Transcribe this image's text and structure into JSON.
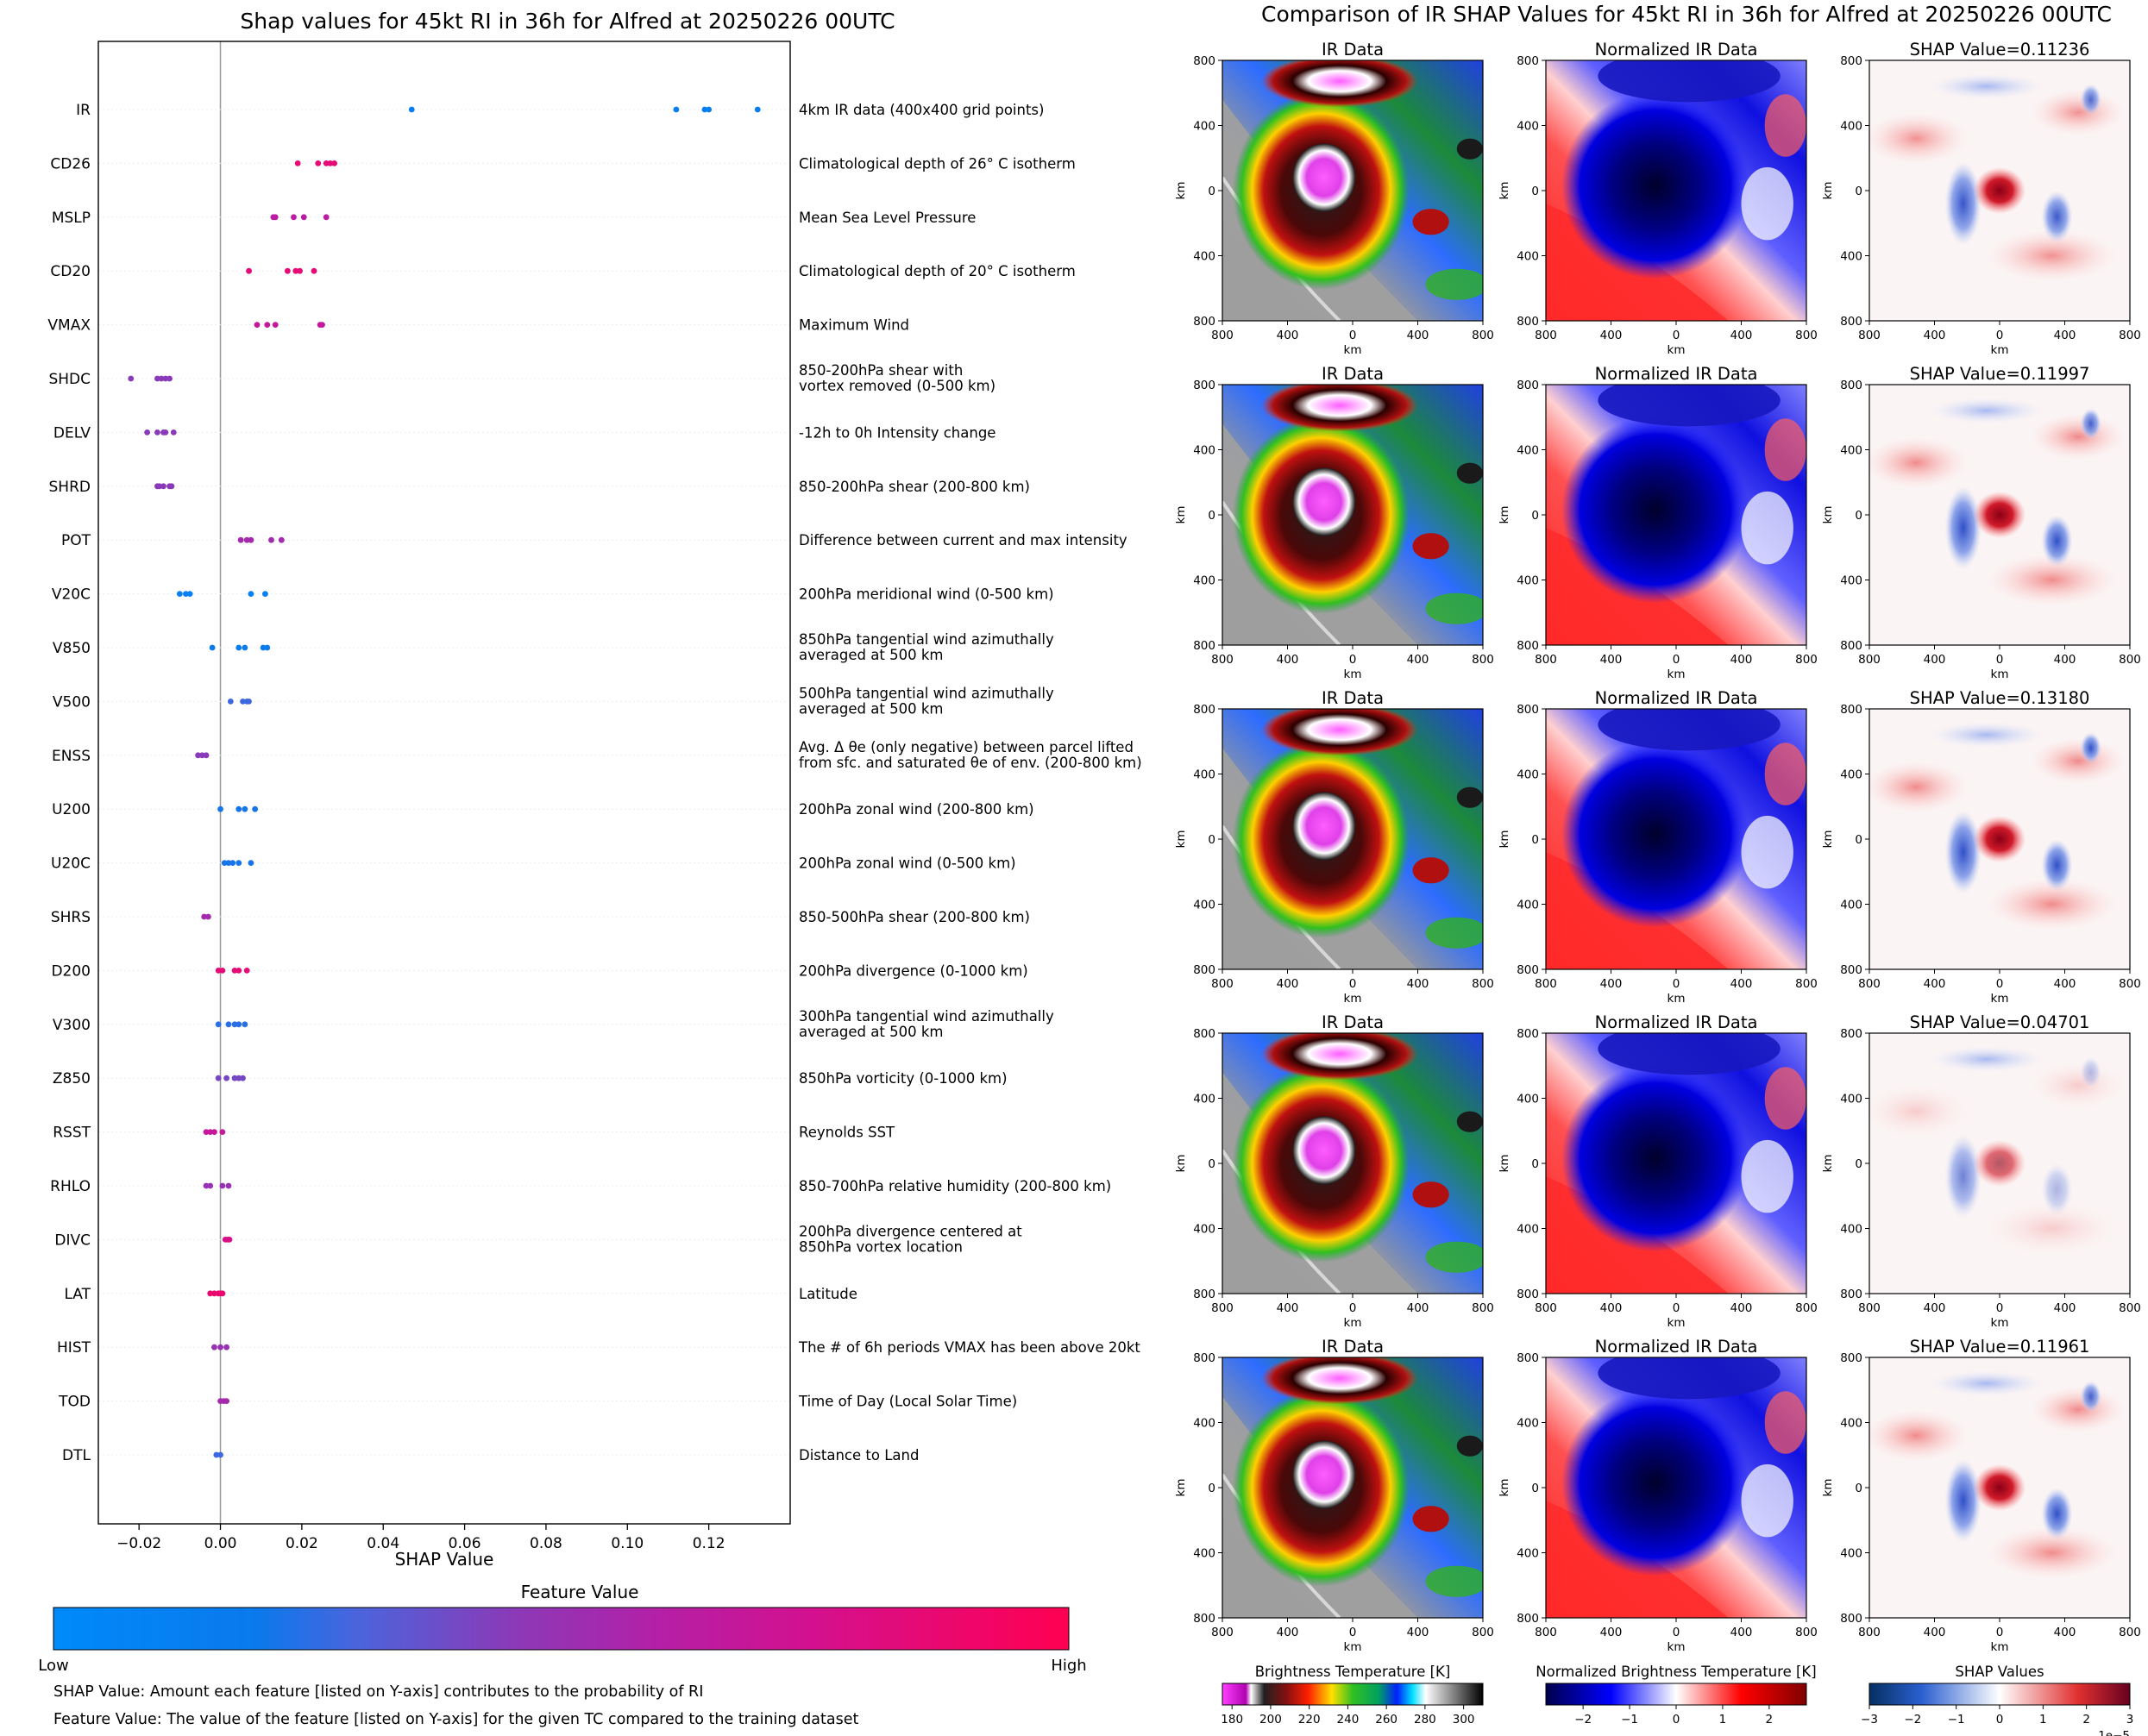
{
  "left_panel": {
    "title": "Shap values for 45kt RI in 36h for Alfred at 20250226 00UTC",
    "colorbar_title": "Feature Value",
    "colorbar_low": "Low",
    "colorbar_high": "High",
    "colorbar_colors": [
      "#008afa",
      "#0a79ec",
      "#4b64dc",
      "#8a3ab8",
      "#b51fa6",
      "#d4108e",
      "#ff0052"
    ],
    "notes": [
      "SHAP Value: Amount each feature [listed on Y-axis] contributes to the probability of RI",
      "Feature Value: The value of the feature [listed on Y-axis] for the given TC compared to the training dataset"
    ]
  },
  "right_panel": {
    "title": "Comparison of IR SHAP Values for 45kt RI in 36h for Alfred at 20250226 00UTC",
    "rows": [
      {
        "ir_title": "IR Data",
        "norm_title": "Normalized IR Data",
        "shap_title": "SHAP Value=0.11236"
      },
      {
        "ir_title": "IR Data",
        "norm_title": "Normalized IR Data",
        "shap_title": "SHAP Value=0.11997"
      },
      {
        "ir_title": "IR Data",
        "norm_title": "Normalized IR Data",
        "shap_title": "SHAP Value=0.13180"
      },
      {
        "ir_title": "IR Data",
        "norm_title": "Normalized IR Data",
        "shap_title": "SHAP Value=0.04701"
      },
      {
        "ir_title": "IR Data",
        "norm_title": "Normalized IR Data",
        "shap_title": "SHAP Value=0.11961"
      }
    ],
    "axis_unit": "km",
    "x_ticks": [
      "800",
      "400",
      "0",
      "400",
      "800"
    ],
    "y_ticks": [
      "800",
      "400",
      "0",
      "400",
      "800"
    ],
    "colorbars": [
      {
        "title": "Brightness Temperature [K]",
        "ticks": [
          "180",
          "200",
          "220",
          "240",
          "260",
          "280",
          "300"
        ],
        "range": [
          175,
          310
        ]
      },
      {
        "title": "Normalized Brightness Temperature [K]",
        "ticks": [
          "−2",
          "−1",
          "0",
          "1",
          "2"
        ],
        "range": [
          -2.8,
          2.8
        ]
      },
      {
        "title": "SHAP Values",
        "ticks": [
          "−3",
          "−2",
          "−1",
          "0",
          "1",
          "2",
          "3"
        ],
        "range": [
          -3,
          3
        ],
        "offset_text": "1e−5"
      }
    ]
  },
  "chart_data": {
    "type": "scatter",
    "title": "Shap values for 45kt RI in 36h for Alfred at 20250226 00UTC",
    "xlabel": "SHAP Value",
    "xlim": [
      -0.03,
      0.14
    ],
    "x_ticks": [
      "−0.02",
      "0.00",
      "0.02",
      "0.04",
      "0.06",
      "0.08",
      "0.10",
      "0.12"
    ],
    "x_tick_values": [
      -0.02,
      0,
      0.02,
      0.04,
      0.06,
      0.08,
      0.1,
      0.12
    ],
    "features": [
      {
        "name": "IR",
        "description": [
          "4km IR data (400x400 grid points)"
        ],
        "points": [
          [
            0.047,
            0.12
          ],
          [
            0.112,
            0.12
          ],
          [
            0.119,
            0.12
          ],
          [
            0.12,
            0.12
          ],
          [
            0.132,
            0.12
          ]
        ]
      },
      {
        "name": "CD26",
        "description": [
          "Climatological depth of 26° C isotherm"
        ],
        "points": [
          [
            0.019,
            0.9
          ],
          [
            0.024,
            0.9
          ],
          [
            0.026,
            0.9
          ],
          [
            0.027,
            0.9
          ],
          [
            0.028,
            0.9
          ]
        ]
      },
      {
        "name": "MSLP",
        "description": [
          "Mean Sea Level Pressure"
        ],
        "points": [
          [
            0.013,
            0.7
          ],
          [
            0.0135,
            0.7
          ],
          [
            0.018,
            0.7
          ],
          [
            0.0205,
            0.7
          ],
          [
            0.026,
            0.7
          ]
        ]
      },
      {
        "name": "CD20",
        "description": [
          "Climatological depth of 20° C isotherm"
        ],
        "points": [
          [
            0.007,
            0.9
          ],
          [
            0.0165,
            0.9
          ],
          [
            0.0185,
            0.9
          ],
          [
            0.0195,
            0.9
          ],
          [
            0.023,
            0.9
          ]
        ]
      },
      {
        "name": "VMAX",
        "description": [
          "Maximum Wind"
        ],
        "points": [
          [
            0.009,
            0.75
          ],
          [
            0.0115,
            0.75
          ],
          [
            0.0135,
            0.75
          ],
          [
            0.0245,
            0.75
          ],
          [
            0.025,
            0.75
          ]
        ]
      },
      {
        "name": "SHDC",
        "description": [
          "850-200hPa shear with",
          "vortex removed (0-500 km)"
        ],
        "points": [
          [
            -0.022,
            0.5
          ],
          [
            -0.0155,
            0.5
          ],
          [
            -0.0145,
            0.5
          ],
          [
            -0.0135,
            0.5
          ],
          [
            -0.0125,
            0.5
          ]
        ]
      },
      {
        "name": "DELV",
        "description": [
          "-12h to 0h Intensity change"
        ],
        "points": [
          [
            -0.018,
            0.5
          ],
          [
            -0.0155,
            0.5
          ],
          [
            -0.014,
            0.5
          ],
          [
            -0.0135,
            0.5
          ],
          [
            -0.0115,
            0.5
          ]
        ]
      },
      {
        "name": "SHRD",
        "description": [
          "850-200hPa shear (200-800 km)"
        ],
        "points": [
          [
            -0.0155,
            0.5
          ],
          [
            -0.015,
            0.5
          ],
          [
            -0.014,
            0.5
          ],
          [
            -0.0125,
            0.5
          ],
          [
            -0.012,
            0.5
          ]
        ]
      },
      {
        "name": "POT",
        "description": [
          "Difference between current and max intensity"
        ],
        "points": [
          [
            0.005,
            0.6
          ],
          [
            0.0065,
            0.6
          ],
          [
            0.0075,
            0.6
          ],
          [
            0.0125,
            0.6
          ],
          [
            0.015,
            0.6
          ]
        ]
      },
      {
        "name": "V20C",
        "description": [
          "200hPa meridional wind (0-500 km)"
        ],
        "points": [
          [
            -0.01,
            0.1
          ],
          [
            -0.0085,
            0.1
          ],
          [
            -0.0075,
            0.1
          ],
          [
            0.0075,
            0.1
          ],
          [
            0.011,
            0.1
          ]
        ]
      },
      {
        "name": "V850",
        "description": [
          "850hPa tangential wind azimuthally",
          "averaged at 500 km"
        ],
        "points": [
          [
            -0.002,
            0.15
          ],
          [
            0.0045,
            0.15
          ],
          [
            0.006,
            0.15
          ],
          [
            0.0105,
            0.15
          ],
          [
            0.0115,
            0.15
          ]
        ]
      },
      {
        "name": "V500",
        "description": [
          "500hPa tangential wind azimuthally",
          "averaged at 500 km"
        ],
        "points": [
          [
            0.0025,
            0.3
          ],
          [
            0.0055,
            0.3
          ],
          [
            0.0065,
            0.3
          ],
          [
            0.007,
            0.3
          ]
        ]
      },
      {
        "name": "ENSS",
        "description": [
          "Avg. Δ θe (only negative) between parcel lifted",
          "from sfc. and saturated θe of env. (200-800 km)"
        ],
        "points": [
          [
            -0.0055,
            0.5
          ],
          [
            -0.0045,
            0.5
          ],
          [
            -0.0035,
            0.5
          ]
        ]
      },
      {
        "name": "U200",
        "description": [
          "200hPa zonal wind (200-800 km)"
        ],
        "points": [
          [
            0.0,
            0.2
          ],
          [
            0.0045,
            0.2
          ],
          [
            0.006,
            0.2
          ],
          [
            0.0085,
            0.2
          ]
        ]
      },
      {
        "name": "U20C",
        "description": [
          "200hPa zonal wind (0-500 km)"
        ],
        "points": [
          [
            0.001,
            0.2
          ],
          [
            0.002,
            0.2
          ],
          [
            0.003,
            0.2
          ],
          [
            0.0045,
            0.2
          ],
          [
            0.0075,
            0.2
          ]
        ]
      },
      {
        "name": "SHRS",
        "description": [
          "850-500hPa shear (200-800 km)"
        ],
        "points": [
          [
            -0.004,
            0.6
          ],
          [
            -0.003,
            0.6
          ]
        ]
      },
      {
        "name": "D200",
        "description": [
          "200hPa divergence (0-1000 km)"
        ],
        "points": [
          [
            -0.0005,
            0.9
          ],
          [
            0.0005,
            0.9
          ],
          [
            0.0035,
            0.9
          ],
          [
            0.0045,
            0.9
          ],
          [
            0.0065,
            0.9
          ]
        ]
      },
      {
        "name": "V300",
        "description": [
          "300hPa tangential wind azimuthally",
          "averaged at 500 km"
        ],
        "points": [
          [
            -0.0005,
            0.25
          ],
          [
            0.002,
            0.25
          ],
          [
            0.0035,
            0.25
          ],
          [
            0.0045,
            0.25
          ],
          [
            0.006,
            0.25
          ]
        ]
      },
      {
        "name": "Z850",
        "description": [
          "850hPa vorticity (0-1000 km)"
        ],
        "points": [
          [
            -0.0005,
            0.45
          ],
          [
            0.0015,
            0.45
          ],
          [
            0.0035,
            0.45
          ],
          [
            0.0045,
            0.45
          ],
          [
            0.0055,
            0.45
          ]
        ]
      },
      {
        "name": "RSST",
        "description": [
          "Reynolds SST"
        ],
        "points": [
          [
            -0.0035,
            0.75
          ],
          [
            -0.0025,
            0.75
          ],
          [
            -0.0015,
            0.75
          ],
          [
            0.0005,
            0.75
          ]
        ]
      },
      {
        "name": "RHLO",
        "description": [
          "850-700hPa relative humidity (200-800 km)"
        ],
        "points": [
          [
            -0.0035,
            0.55
          ],
          [
            -0.0025,
            0.55
          ],
          [
            0.0005,
            0.55
          ],
          [
            0.002,
            0.55
          ]
        ]
      },
      {
        "name": "DIVC",
        "description": [
          "200hPa divergence centered at",
          "850hPa vortex location"
        ],
        "points": [
          [
            0.0012,
            0.85
          ],
          [
            0.0018,
            0.85
          ],
          [
            0.0022,
            0.85
          ]
        ]
      },
      {
        "name": "LAT",
        "description": [
          "Latitude"
        ],
        "points": [
          [
            -0.0025,
            0.92
          ],
          [
            -0.0015,
            0.92
          ],
          [
            -0.0005,
            0.92
          ],
          [
            0.0,
            0.92
          ],
          [
            0.0005,
            0.92
          ]
        ]
      },
      {
        "name": "HIST",
        "description": [
          "The # of 6h periods VMAX has been above 20kt"
        ],
        "points": [
          [
            -0.0015,
            0.55
          ],
          [
            0.0,
            0.55
          ],
          [
            0.0015,
            0.55
          ]
        ]
      },
      {
        "name": "TOD",
        "description": [
          "Time of Day (Local Solar Time)"
        ],
        "points": [
          [
            0.0,
            0.6
          ],
          [
            0.0008,
            0.6
          ],
          [
            0.0015,
            0.6
          ]
        ]
      },
      {
        "name": "DTL",
        "description": [
          "Distance to Land"
        ],
        "points": [
          [
            -0.001,
            0.3
          ],
          [
            0.0,
            0.3
          ]
        ]
      }
    ]
  }
}
